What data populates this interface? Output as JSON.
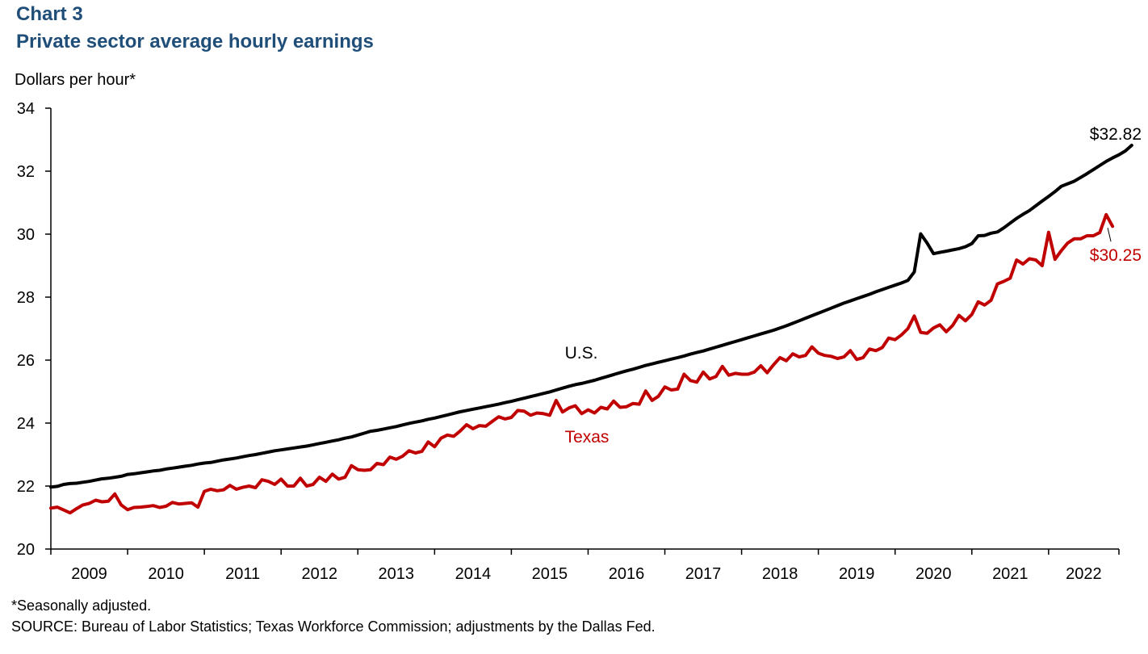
{
  "header": {
    "chart_number": "Chart 3",
    "title": "Private sector average hourly earnings",
    "y_unit": "Dollars per hour*"
  },
  "footer": {
    "note": "*Seasonally adjusted.",
    "source": "SOURCE: Bureau of Labor Statistics; Texas Workforce Commission; adjustments  by the Dallas Fed."
  },
  "colors": {
    "us": "#000000",
    "texas": "#c00000",
    "title": "#1f4e79"
  },
  "chart_data": {
    "type": "line",
    "title": "Private sector average hourly earnings",
    "ylabel": "Dollars per hour*",
    "xlabel": "",
    "ylim": [
      20,
      34
    ],
    "yticks": [
      20,
      22,
      24,
      26,
      28,
      30,
      32,
      34
    ],
    "x_range": [
      "2009-01",
      "2022-11"
    ],
    "x_year_labels": [
      "2009",
      "2010",
      "2011",
      "2012",
      "2013",
      "2014",
      "2015",
      "2016",
      "2017",
      "2018",
      "2019",
      "2020",
      "2021",
      "2022"
    ],
    "grid": false,
    "legend": "none",
    "series": [
      {
        "name": "U.S.",
        "color": "#000000",
        "end_label": "$32.82",
        "values": [
          21.97,
          21.99,
          22.05,
          22.08,
          22.09,
          22.12,
          22.15,
          22.19,
          22.23,
          22.25,
          22.28,
          22.31,
          22.37,
          22.39,
          22.42,
          22.45,
          22.48,
          22.5,
          22.54,
          22.57,
          22.6,
          22.63,
          22.66,
          22.7,
          22.73,
          22.75,
          22.79,
          22.83,
          22.86,
          22.89,
          22.93,
          22.97,
          23.0,
          23.04,
          23.08,
          23.12,
          23.15,
          23.18,
          23.21,
          23.24,
          23.27,
          23.31,
          23.35,
          23.39,
          23.43,
          23.47,
          23.52,
          23.56,
          23.62,
          23.68,
          23.74,
          23.77,
          23.81,
          23.85,
          23.89,
          23.94,
          23.99,
          24.03,
          24.07,
          24.12,
          24.16,
          24.21,
          24.26,
          24.31,
          24.36,
          24.4,
          24.44,
          24.48,
          24.52,
          24.56,
          24.6,
          24.65,
          24.69,
          24.74,
          24.79,
          24.84,
          24.89,
          24.94,
          24.99,
          25.05,
          25.11,
          25.17,
          25.22,
          25.26,
          25.31,
          25.36,
          25.42,
          25.48,
          25.54,
          25.6,
          25.66,
          25.71,
          25.77,
          25.83,
          25.88,
          25.93,
          25.98,
          26.03,
          26.08,
          26.13,
          26.19,
          26.24,
          26.29,
          26.35,
          26.41,
          26.47,
          26.53,
          26.59,
          26.65,
          26.71,
          26.77,
          26.83,
          26.89,
          26.95,
          27.02,
          27.09,
          27.17,
          27.25,
          27.33,
          27.41,
          27.49,
          27.57,
          27.65,
          27.73,
          27.81,
          27.88,
          27.95,
          28.02,
          28.09,
          28.17,
          28.24,
          28.31,
          28.38,
          28.45,
          28.53,
          28.8,
          30.01,
          29.72,
          29.38,
          29.42,
          29.46,
          29.5,
          29.54,
          29.6,
          29.7,
          29.95,
          29.96,
          30.03,
          30.07,
          30.2,
          30.35,
          30.5,
          30.63,
          30.75,
          30.9,
          31.05,
          31.2,
          31.35,
          31.52,
          31.6,
          31.68,
          31.8,
          31.92,
          32.05,
          32.18,
          32.31,
          32.42,
          32.52,
          32.64,
          32.82
        ]
      },
      {
        "name": "Texas",
        "color": "#c00000",
        "end_label": "$30.25",
        "values": [
          21.3,
          21.33,
          21.24,
          21.15,
          21.28,
          21.4,
          21.45,
          21.55,
          21.5,
          21.52,
          21.75,
          21.4,
          21.25,
          21.32,
          21.33,
          21.35,
          21.38,
          21.32,
          21.36,
          21.48,
          21.43,
          21.45,
          21.47,
          21.33,
          21.83,
          21.9,
          21.85,
          21.88,
          22.02,
          21.9,
          21.96,
          22.0,
          21.95,
          22.2,
          22.15,
          22.05,
          22.22,
          22.0,
          22.0,
          22.25,
          22.0,
          22.05,
          22.28,
          22.15,
          22.38,
          22.22,
          22.28,
          22.65,
          22.52,
          22.5,
          22.52,
          22.72,
          22.68,
          22.92,
          22.85,
          22.95,
          23.12,
          23.05,
          23.1,
          23.4,
          23.25,
          23.52,
          23.62,
          23.58,
          23.75,
          23.95,
          23.82,
          23.92,
          23.9,
          24.05,
          24.2,
          24.13,
          24.18,
          24.4,
          24.38,
          24.25,
          24.32,
          24.3,
          24.25,
          24.72,
          24.35,
          24.48,
          24.55,
          24.3,
          24.42,
          24.32,
          24.5,
          24.45,
          24.7,
          24.5,
          24.52,
          24.62,
          24.6,
          25.02,
          24.72,
          24.85,
          25.15,
          25.05,
          25.08,
          25.55,
          25.35,
          25.3,
          25.62,
          25.4,
          25.48,
          25.8,
          25.52,
          25.58,
          25.55,
          25.55,
          25.62,
          25.82,
          25.6,
          25.85,
          26.08,
          25.98,
          26.2,
          26.1,
          26.15,
          26.42,
          26.22,
          26.15,
          26.12,
          26.05,
          26.1,
          26.3,
          26.02,
          26.08,
          26.35,
          26.3,
          26.4,
          26.7,
          26.65,
          26.8,
          27.0,
          27.4,
          26.88,
          26.85,
          27.02,
          27.12,
          26.9,
          27.1,
          27.42,
          27.25,
          27.45,
          27.85,
          27.75,
          27.9,
          28.42,
          28.5,
          28.6,
          29.18,
          29.05,
          29.22,
          29.18,
          29.0,
          30.06,
          29.2,
          29.48,
          29.72,
          29.85,
          29.85,
          29.95,
          29.95,
          30.05,
          30.62,
          30.25
        ]
      }
    ],
    "annotations": [
      {
        "text": "U.S.",
        "series": "U.S."
      },
      {
        "text": "Texas",
        "series": "Texas"
      },
      {
        "text": "$32.82",
        "series": "U.S."
      },
      {
        "text": "$30.25",
        "series": "Texas"
      }
    ]
  }
}
